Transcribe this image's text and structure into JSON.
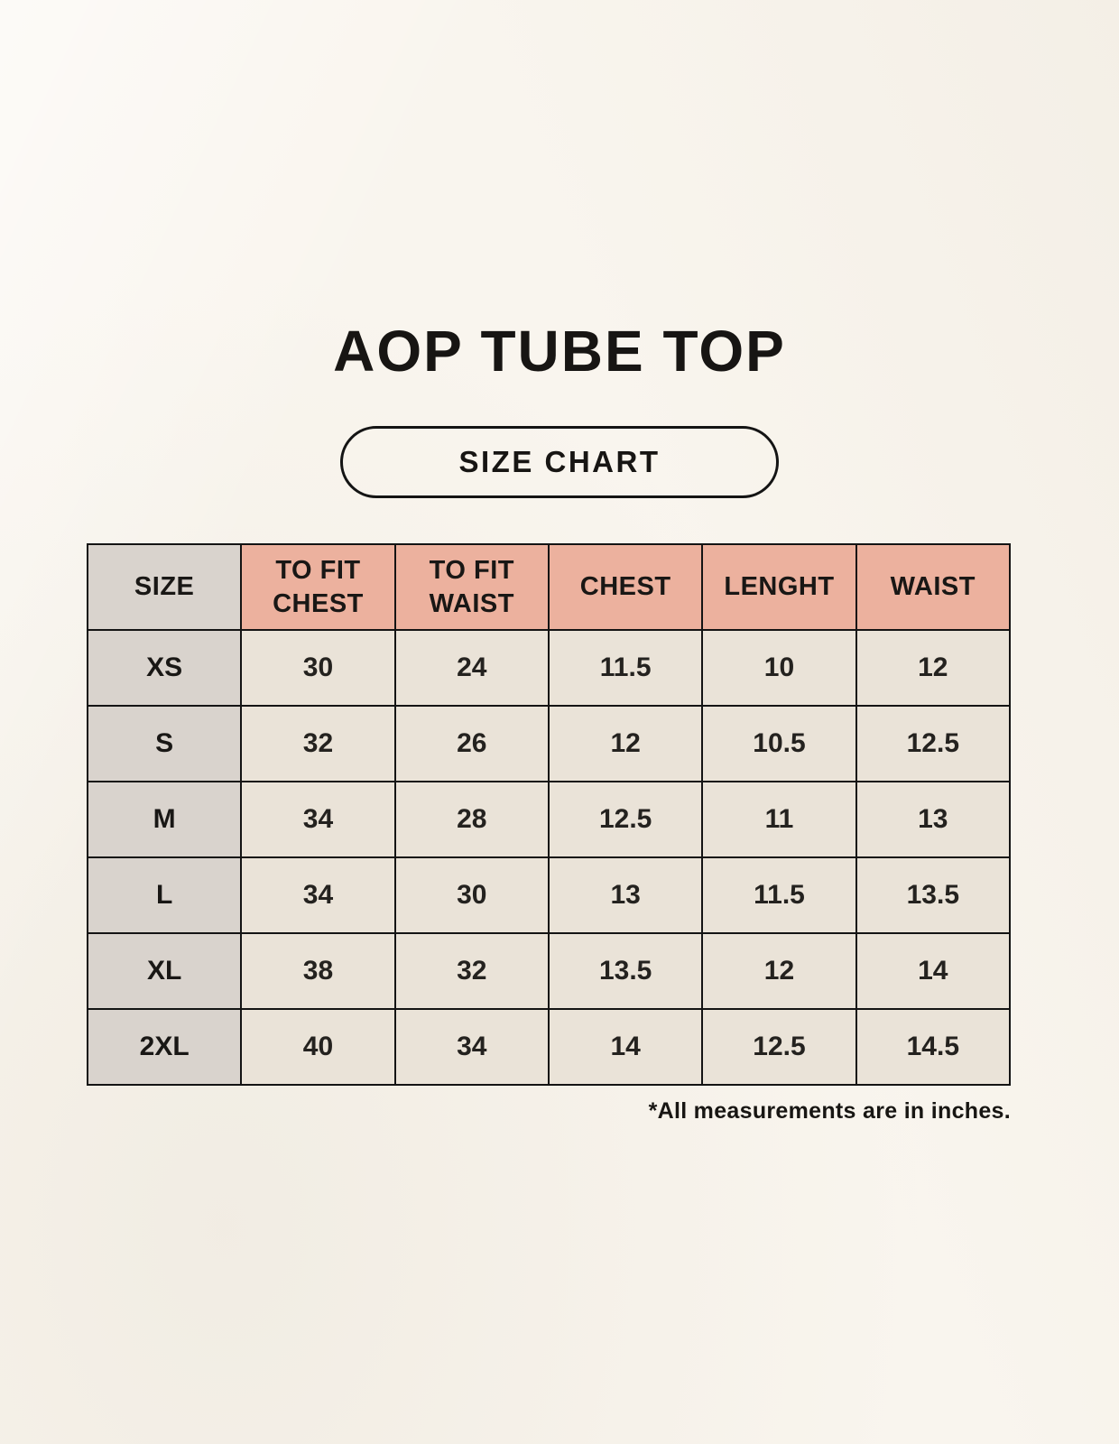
{
  "page": {
    "title": "AOP TUBE TOP",
    "badge_label": "SIZE CHART",
    "footnote": "*All measurements are in inches."
  },
  "table": {
    "columns": [
      "SIZE",
      "TO FIT CHEST",
      "TO FIT WAIST",
      "CHEST",
      "LENGHT",
      "WAIST"
    ],
    "rows": [
      {
        "size": "XS",
        "values": [
          "30",
          "24",
          "11.5",
          "10",
          "12"
        ]
      },
      {
        "size": "S",
        "values": [
          "32",
          "26",
          "12",
          "10.5",
          "12.5"
        ]
      },
      {
        "size": "M",
        "values": [
          "34",
          "28",
          "12.5",
          "11",
          "13"
        ]
      },
      {
        "size": "L",
        "values": [
          "34",
          "30",
          "13",
          "11.5",
          "13.5"
        ]
      },
      {
        "size": "XL",
        "values": [
          "38",
          "32",
          "13.5",
          "12",
          "14"
        ]
      },
      {
        "size": "2XL",
        "values": [
          "40",
          "34",
          "14",
          "12.5",
          "14.5"
        ]
      }
    ]
  },
  "colors": {
    "background": "#f9f5ee",
    "header_accent": "#ecb19e",
    "size_column": "#d9d3cd",
    "value_cell": "#eae3d8",
    "border": "#141414",
    "text": "#171513"
  }
}
